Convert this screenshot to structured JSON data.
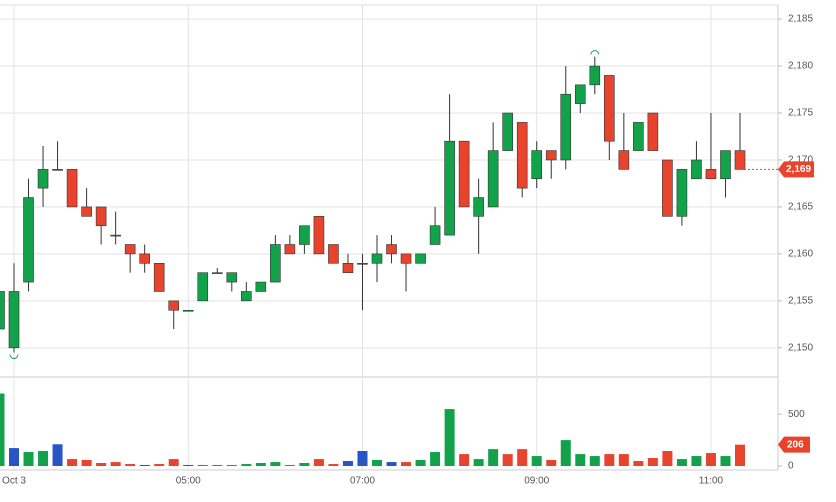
{
  "chart_data": [
    {
      "type": "candlestick",
      "categories": [
        null,
        "Oct 3",
        null,
        null,
        null,
        null,
        null,
        null,
        null,
        null,
        null,
        null,
        null,
        "05:00",
        null,
        null,
        null,
        null,
        null,
        null,
        null,
        null,
        null,
        null,
        null,
        "07:00",
        null,
        null,
        null,
        null,
        null,
        null,
        null,
        null,
        null,
        null,
        null,
        "09:00",
        null,
        null,
        null,
        null,
        null,
        null,
        null,
        null,
        null,
        null,
        null,
        "11:00",
        null,
        null
      ],
      "open": [
        2152,
        2150,
        2157,
        2167,
        2169,
        2169,
        2165,
        2165,
        2162,
        2161,
        2160,
        2159,
        2155,
        2154,
        2155,
        2158,
        2157,
        2155,
        2156,
        2157,
        2161,
        2161,
        2164,
        2161,
        2159,
        2159,
        2159,
        2161,
        2160,
        2159,
        2161,
        2162,
        2172,
        2164,
        2165,
        2171,
        2174,
        2168,
        2171,
        2170,
        2176,
        2178,
        2179,
        2171,
        2171,
        2175,
        2170,
        2164,
        2168,
        2169,
        2168,
        2171
      ],
      "high": [
        2160,
        2159,
        2168,
        2171.5,
        2172,
        2169,
        2167,
        2165,
        2164.5,
        2161,
        2161,
        2159,
        2155,
        2154,
        2158,
        2158.5,
        2158,
        2157,
        2157,
        2162,
        2162,
        2163,
        2164,
        2161,
        2160,
        2160,
        2162,
        2162,
        2160,
        2160,
        2165,
        2177,
        2172,
        2168,
        2174,
        2175,
        2174,
        2172,
        2171,
        2180,
        2178,
        2181,
        2179,
        2175,
        2174,
        2175,
        2170,
        2169,
        2172,
        2175,
        2171,
        2175
      ],
      "low": [
        2150,
        2149.5,
        2156,
        2165,
        2169,
        2165,
        2164,
        2161,
        2161,
        2158,
        2158,
        2156,
        2152,
        2154,
        2155,
        2158,
        2156,
        2155,
        2156,
        2157,
        2160,
        2160,
        2160,
        2159,
        2158,
        2154,
        2157,
        2159,
        2156,
        2159,
        2161,
        2162,
        2165,
        2160,
        2165,
        2171,
        2166,
        2167,
        2168,
        2169,
        2175,
        2177,
        2170,
        2169,
        2171,
        2171,
        2164,
        2163,
        2168,
        2168,
        2166,
        2169
      ],
      "close": [
        2156,
        2156,
        2166,
        2169,
        2169,
        2165,
        2164,
        2163,
        2162,
        2160,
        2159,
        2156,
        2154,
        2154,
        2158,
        2158,
        2158,
        2156,
        2157,
        2161,
        2160,
        2163,
        2160,
        2159,
        2158,
        2159,
        2160,
        2160,
        2159,
        2160,
        2163,
        2172,
        2165,
        2166,
        2171,
        2175,
        2167,
        2171,
        2170,
        2177,
        2178,
        2180,
        2172,
        2169,
        2174,
        2171,
        2164,
        2169,
        2170,
        2168,
        2171,
        2169
      ],
      "last_value_label": "2,169",
      "up_color": "#12a24a",
      "down_color": "#e8432d",
      "ylim": [
        2147,
        2186.5
      ],
      "yticks": [
        {
          "value": 2150,
          "label": "2,150"
        },
        {
          "value": 2155,
          "label": "2,155"
        },
        {
          "value": 2160,
          "label": "2,160"
        },
        {
          "value": 2165,
          "label": "2,165"
        },
        {
          "value": 2170,
          "label": "2,170"
        },
        {
          "value": 2175,
          "label": "2,175"
        },
        {
          "value": 2180,
          "label": "2,180"
        },
        {
          "value": 2185,
          "label": "2,185"
        }
      ],
      "grid": true
    },
    {
      "type": "bar",
      "values": [
        700,
        173,
        135,
        145,
        210,
        67,
        58,
        29,
        38,
        19,
        10,
        19,
        67,
        10,
        10,
        10,
        10,
        19,
        29,
        38,
        10,
        29,
        67,
        19,
        48,
        145,
        58,
        38,
        38,
        58,
        135,
        550,
        115,
        67,
        163,
        115,
        163,
        96,
        58,
        250,
        115,
        96,
        115,
        115,
        48,
        77,
        145,
        67,
        96,
        125,
        96,
        206
      ],
      "colors": [
        "#12a24a",
        "#2855c5",
        "#12a24a",
        "#12a24a",
        "#2855c5",
        "#e8432d",
        "#e8432d",
        "#e8432d",
        "#e8432d",
        "#e8432d",
        "#2855c5",
        "#e8432d",
        "#e8432d",
        "#2855c5",
        "#12a24a",
        "#12a24a",
        "#12a24a",
        "#12a24a",
        "#12a24a",
        "#12a24a",
        "#e8432d",
        "#12a24a",
        "#e8432d",
        "#e8432d",
        "#2855c5",
        "#2855c5",
        "#12a24a",
        "#2855c5",
        "#e8432d",
        "#12a24a",
        "#12a24a",
        "#12a24a",
        "#e8432d",
        "#12a24a",
        "#12a24a",
        "#e8432d",
        "#e8432d",
        "#12a24a",
        "#e8432d",
        "#12a24a",
        "#12a24a",
        "#12a24a",
        "#e8432d",
        "#e8432d",
        "#e8432d",
        "#e8432d",
        "#e8432d",
        "#12a24a",
        "#12a24a",
        "#e8432d",
        "#12a24a",
        "#e8432d"
      ],
      "ylim": [
        0,
        850
      ],
      "yticks": [
        0,
        500
      ]
    }
  ]
}
